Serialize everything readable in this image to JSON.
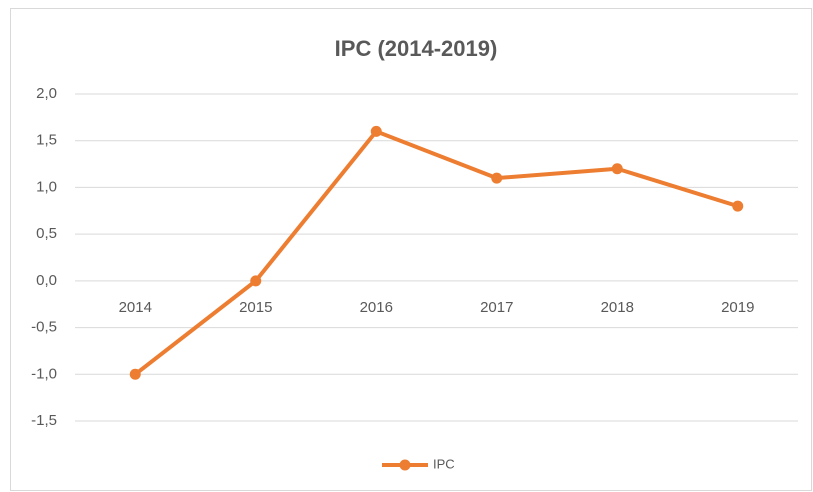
{
  "chart_data": {
    "type": "line",
    "title": "IPC (2014-2019)",
    "categories": [
      "2014",
      "2015",
      "2016",
      "2017",
      "2018",
      "2019"
    ],
    "series": [
      {
        "name": "IPC",
        "color": "#ed7d31",
        "values": [
          -1,
          0,
          1.6,
          1.1,
          1.2,
          0.8
        ]
      }
    ],
    "ylim": [
      -1.5,
      2
    ],
    "yticks": [
      {
        "value": 2,
        "label": "2,0"
      },
      {
        "value": 1.5,
        "label": "1,5"
      },
      {
        "value": 1,
        "label": "1,0"
      },
      {
        "value": 0.5,
        "label": "0,5"
      },
      {
        "value": 0,
        "label": "0,0"
      },
      {
        "value": -0.5,
        "label": "-0,5"
      },
      {
        "value": -1,
        "label": "-1,0"
      },
      {
        "value": -1.5,
        "label": "-1,5"
      }
    ],
    "grid": true,
    "legend": "bottom"
  }
}
